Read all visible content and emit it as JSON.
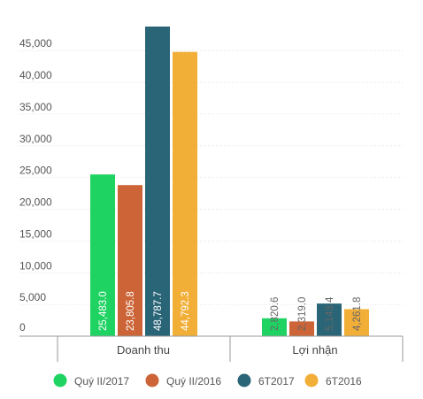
{
  "chart_data": {
    "type": "bar",
    "categories": [
      "Doanh thu",
      "Lợi nhận"
    ],
    "series": [
      {
        "name": "Quý II/2017",
        "color": "#1fd363",
        "values": [
          25483.0,
          2820.6
        ],
        "labels": [
          "25,483.0",
          "2,820.6"
        ]
      },
      {
        "name": "Quý II/2016",
        "color": "#cc6437",
        "values": [
          23805.8,
          2319.0
        ],
        "labels": [
          "23,805.8",
          "2,319.0"
        ]
      },
      {
        "name": "6T2017",
        "color": "#2a6577",
        "values": [
          48787.7,
          5143.4
        ],
        "labels": [
          "48,787.7",
          "5,143.4"
        ]
      },
      {
        "name": "6T2016",
        "color": "#f2af38",
        "values": [
          44792.3,
          4261.8
        ],
        "labels": [
          "44,792.3",
          "4,261.8"
        ]
      }
    ],
    "yticks": [
      0,
      5000,
      10000,
      15000,
      20000,
      25000,
      30000,
      35000,
      40000,
      45000
    ],
    "ytick_labels": [
      "0",
      "5,000",
      "10,000",
      "15,000",
      "20,000",
      "25,000",
      "30,000",
      "35,000",
      "40,000",
      "45,000"
    ],
    "ylim": [
      0,
      48787.7
    ],
    "grid": true,
    "legend_position": "bottom"
  }
}
